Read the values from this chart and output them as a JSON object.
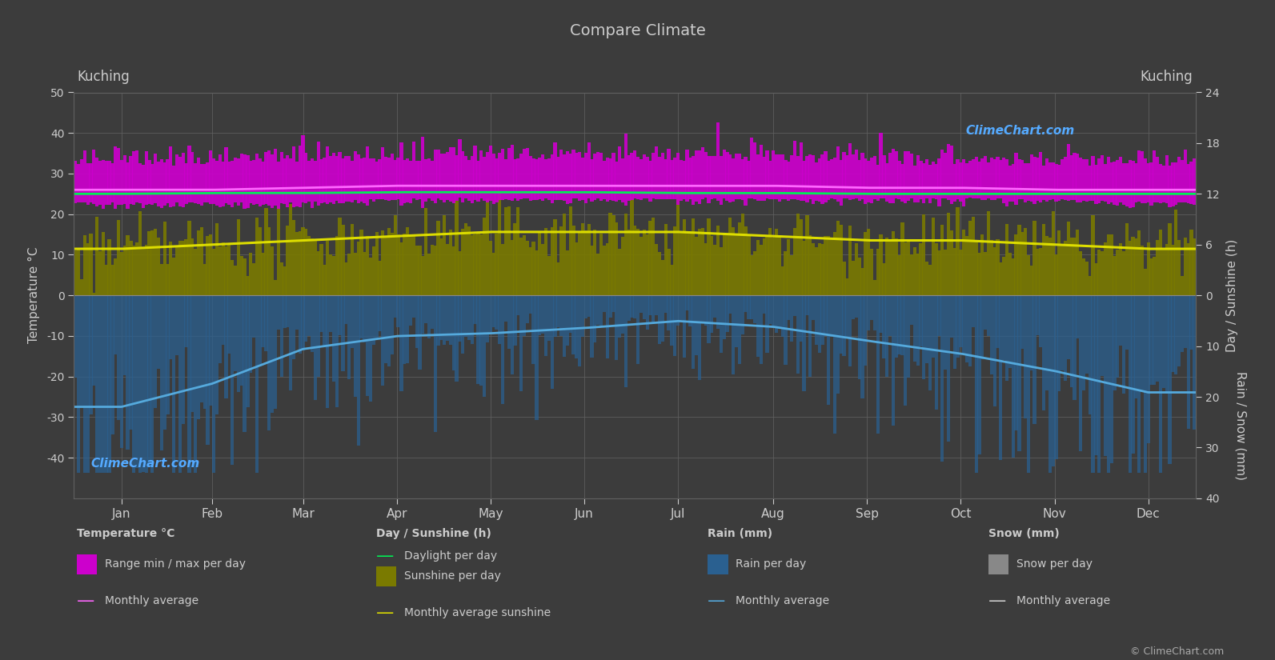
{
  "title": "Compare Climate",
  "city_left": "Kuching",
  "city_right": "Kuching",
  "bg_color": "#3c3c3c",
  "plot_bg_color": "#3c3c3c",
  "grid_color": "#606060",
  "text_color": "#cccccc",
  "months": [
    "Jan",
    "Feb",
    "Mar",
    "Apr",
    "May",
    "Jun",
    "Jul",
    "Aug",
    "Sep",
    "Oct",
    "Nov",
    "Dec"
  ],
  "temp_max_monthly": [
    32,
    32,
    33,
    33,
    33,
    33,
    33,
    33,
    32,
    32,
    32,
    32
  ],
  "temp_min_monthly": [
    23,
    23,
    23,
    24,
    24,
    24,
    24,
    24,
    24,
    24,
    24,
    23
  ],
  "temp_avg_monthly": [
    26.0,
    26.0,
    26.5,
    27.0,
    27.0,
    27.0,
    27.0,
    27.0,
    26.5,
    26.5,
    26.0,
    26.0
  ],
  "daylight_monthly": [
    12.0,
    12.1,
    12.1,
    12.2,
    12.2,
    12.2,
    12.1,
    12.1,
    12.0,
    12.0,
    12.0,
    12.0
  ],
  "sunshine_monthly": [
    5.5,
    6.0,
    6.5,
    7.0,
    7.5,
    7.5,
    7.5,
    7.0,
    6.5,
    6.5,
    6.0,
    5.5
  ],
  "rain_monthly_mm": [
    681,
    487,
    328,
    241,
    232,
    193,
    157,
    192,
    268,
    356,
    447,
    593
  ],
  "days_in_month": [
    31,
    28,
    31,
    30,
    31,
    30,
    31,
    31,
    30,
    31,
    30,
    31
  ],
  "noise_seed": 42,
  "colors": {
    "temp_band": "#cc00cc",
    "temp_avg_line": "#ff66ff",
    "daylight_line": "#00ee55",
    "sunshine_band": "#7a7a00",
    "sunshine_line": "#dddd00",
    "rain_band": "#2a6090",
    "rain_line": "#55aadd",
    "snow_band": "#888888"
  }
}
